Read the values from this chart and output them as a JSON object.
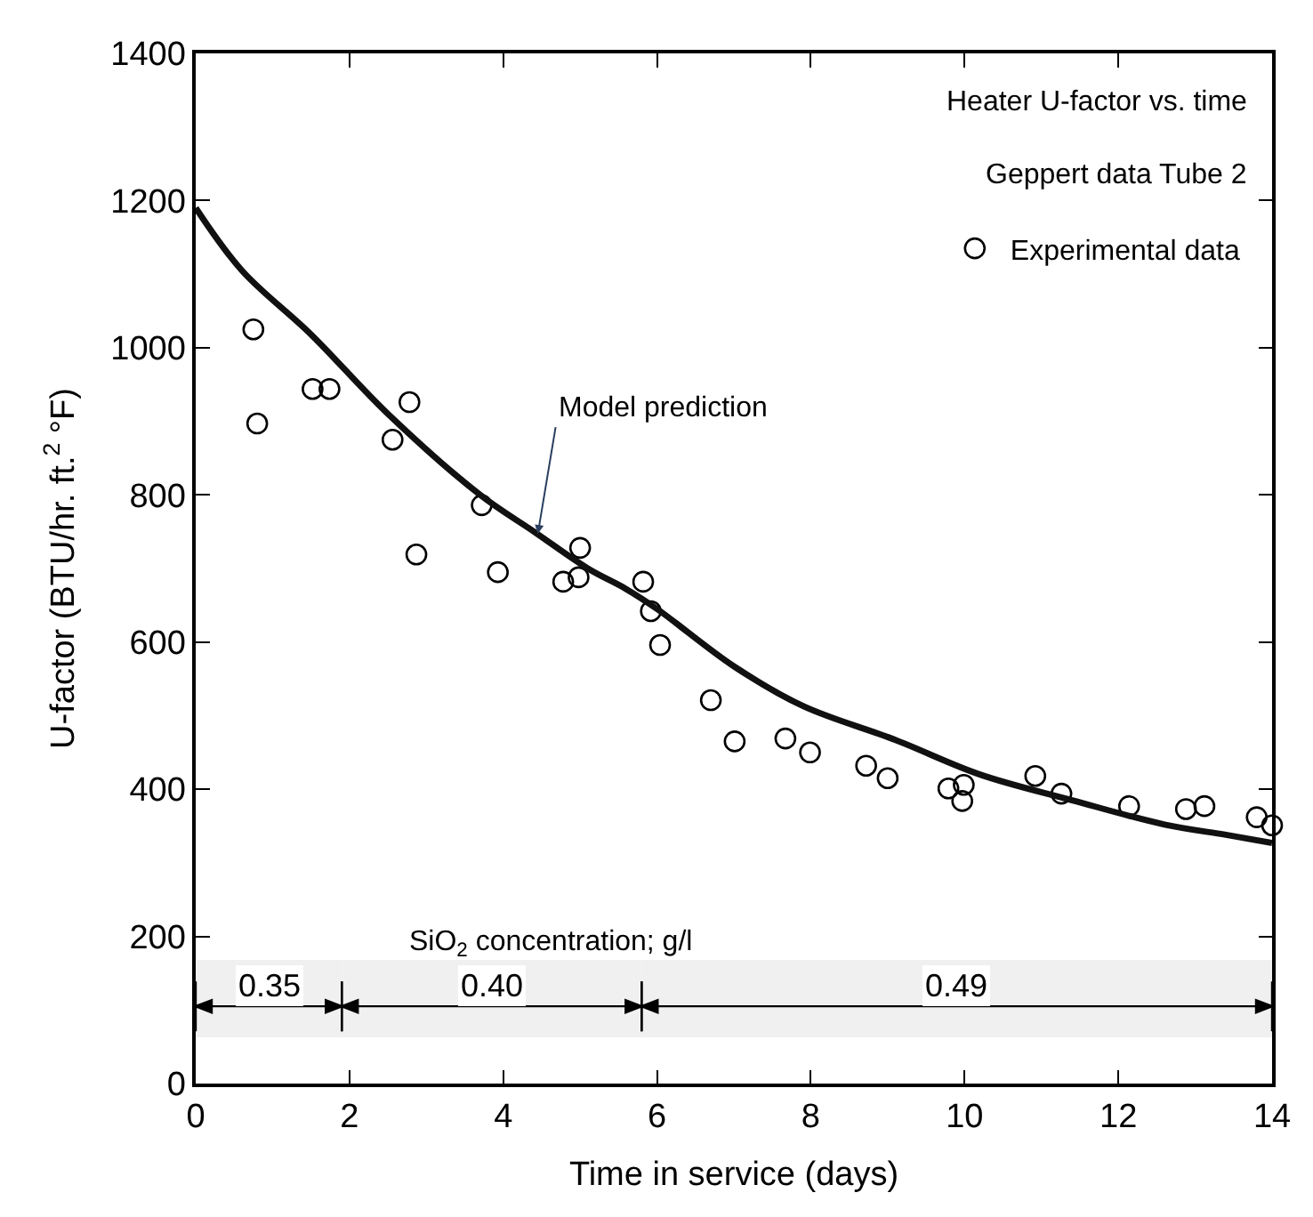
{
  "chart_data": {
    "type": "scatter",
    "xlabel": "Time in service (days)",
    "ylabel": "U-factor (BTU/hr. ft.$^{2}$ °F)",
    "xlim": [
      0,
      14
    ],
    "xticks": [
      0,
      2,
      4,
      6,
      8,
      10,
      12,
      14
    ],
    "ylim": [
      0,
      1400
    ],
    "yticks": [
      0,
      200,
      400,
      600,
      800,
      1000,
      1200,
      1400
    ],
    "grid": false,
    "legend": "top right",
    "series": [
      {
        "name": "Experimental data",
        "marker": "circle",
        "color": "#000000",
        "x": [
          0.75,
          0.8,
          1.52,
          1.74,
          2.56,
          2.78,
          2.87,
          3.72,
          3.93,
          4.78,
          4.98,
          5.0,
          5.82,
          5.92,
          6.04,
          6.7,
          7.01,
          7.67,
          7.99,
          8.72,
          9.0,
          9.79,
          9.97,
          9.99,
          10.92,
          11.26,
          12.14,
          12.88,
          13.12,
          13.8,
          14.0
        ],
        "values": [
          1025,
          897,
          944,
          944,
          875,
          926,
          719,
          786,
          695,
          682,
          688,
          728,
          682,
          642,
          596,
          521,
          465,
          469,
          450,
          432,
          415,
          401,
          384,
          406,
          418,
          394,
          377,
          373,
          377,
          362,
          351
        ]
      },
      {
        "type": "line",
        "marker": "none",
        "color": "#111111",
        "line_style": "solid",
        "x": [
          0,
          0.6,
          1.5,
          2.5,
          3.7,
          4.4,
          5.1,
          5.6,
          6.0,
          7.0,
          7.9,
          9.1,
          10.2,
          11.4,
          12.6,
          13.4,
          14
        ],
        "values": [
          1190,
          1105,
          1018,
          910,
          800,
          750,
          700,
          672,
          645,
          567,
          513,
          467,
          420,
          385,
          352,
          338,
          327
        ]
      }
    ],
    "annotations": [
      "Heater U-factor vs. time",
      "Geppert data Tube 2",
      {
        "text": "Model prediction",
        "x": 4.45,
        "y": 747
      },
      "SiO$_{2}$ concentration; g/l"
    ],
    "bands": [
      {
        "axis": "x",
        "from": 0,
        "to": 1.9,
        "label": "0.35",
        "color": "#f0f0f0"
      },
      {
        "axis": "x",
        "from": 1.9,
        "to": 5.8,
        "label": "0.40",
        "color": "#f0f0f0"
      },
      {
        "axis": "x",
        "from": 5.8,
        "to": 14,
        "label": "0.49",
        "color": "#f0f0f0"
      }
    ]
  }
}
